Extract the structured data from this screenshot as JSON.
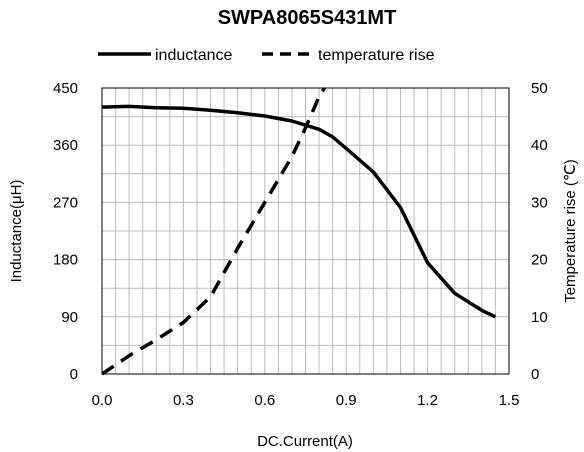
{
  "chart_data": {
    "type": "line",
    "title": "SWPA8065S431MT",
    "xlabel": "DC.Current(A)",
    "ylabel_left": "Inductance(μH)",
    "ylabel_right": "Temperature rise (℃)",
    "xlim": [
      0,
      1.5
    ],
    "ylim_left": [
      0,
      450
    ],
    "ylim_right": [
      0,
      50
    ],
    "x_ticks": [
      "0.0",
      "0.3",
      "0.6",
      "0.9",
      "1.2",
      "1.5"
    ],
    "y_left_ticks": [
      "0",
      "90",
      "180",
      "270",
      "360",
      "450"
    ],
    "y_right_ticks": [
      "0",
      "10",
      "20",
      "30",
      "40",
      "50"
    ],
    "grid": true,
    "legend_position": "top",
    "series": [
      {
        "name": "inductance",
        "axis": "left",
        "style": "solid",
        "color": "#000000",
        "points": [
          [
            0,
            420
          ],
          [
            0.1,
            421
          ],
          [
            0.2,
            419
          ],
          [
            0.3,
            418
          ],
          [
            0.4,
            415
          ],
          [
            0.5,
            411
          ],
          [
            0.6,
            406
          ],
          [
            0.7,
            398
          ],
          [
            0.8,
            385
          ],
          [
            0.85,
            373
          ],
          [
            0.9,
            355
          ],
          [
            1.0,
            318
          ],
          [
            1.1,
            262
          ],
          [
            1.2,
            175
          ],
          [
            1.3,
            127
          ],
          [
            1.4,
            100
          ],
          [
            1.45,
            90
          ]
        ]
      },
      {
        "name": "temperature rise",
        "axis": "right",
        "style": "dashed",
        "color": "#000000",
        "points": [
          [
            0,
            0
          ],
          [
            0.1,
            3.2
          ],
          [
            0.2,
            6.0
          ],
          [
            0.3,
            9.0
          ],
          [
            0.4,
            13.5
          ],
          [
            0.5,
            22
          ],
          [
            0.6,
            30
          ],
          [
            0.7,
            38
          ],
          [
            0.75,
            43
          ],
          [
            0.8,
            48.5
          ],
          [
            0.82,
            50
          ]
        ]
      }
    ]
  }
}
